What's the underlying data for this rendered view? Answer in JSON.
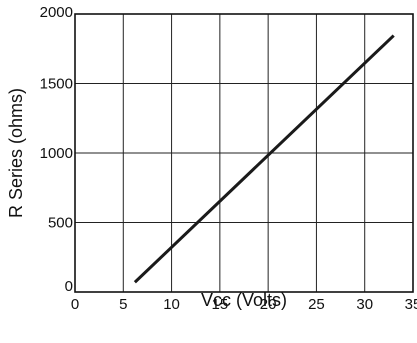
{
  "chart_data": {
    "type": "line",
    "title": "",
    "xlabel": "Vcc (Volts)",
    "ylabel": "R Series (ohms)",
    "xlim": [
      0,
      35
    ],
    "ylim": [
      0,
      2000
    ],
    "xticks": [
      0,
      5,
      10,
      15,
      20,
      25,
      30,
      35
    ],
    "xtick_labels": [
      "0",
      "5",
      "10",
      "15",
      "20",
      "25",
      "30",
      "35"
    ],
    "yticks": [
      0,
      500,
      1000,
      1500,
      2000
    ],
    "ytick_labels": [
      "0",
      "500",
      "1000",
      "1500",
      "2000"
    ],
    "grid": true,
    "legend": "none",
    "line_color": "#1a1a1a",
    "series": [
      {
        "x": [
          6.2,
          33
        ],
        "y": [
          70,
          1845
        ]
      }
    ]
  }
}
